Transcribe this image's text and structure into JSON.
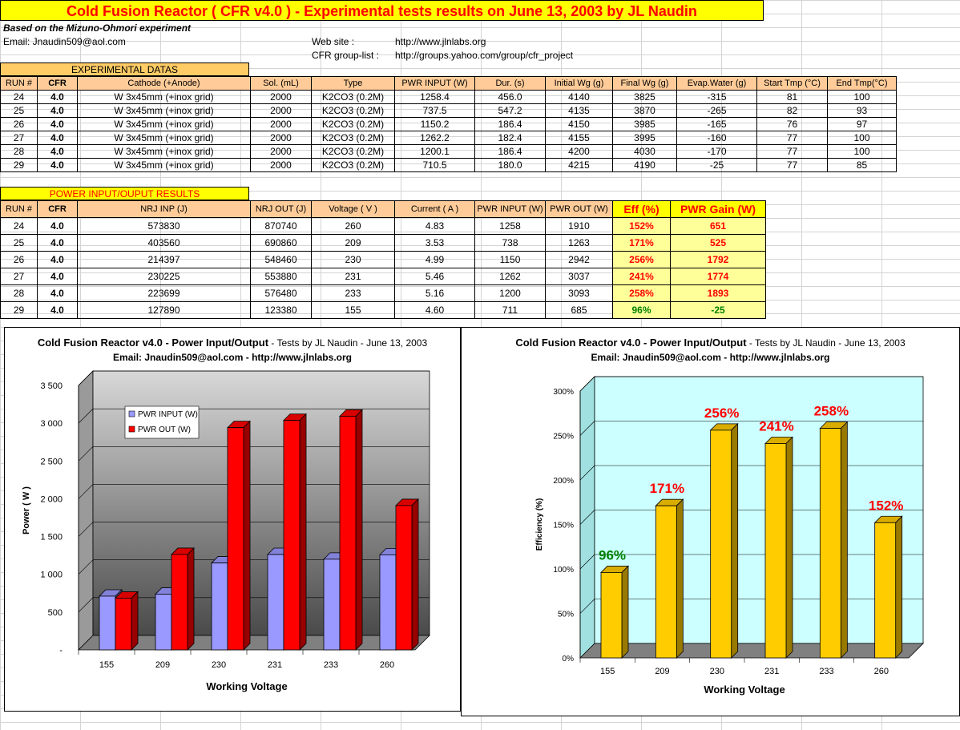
{
  "title": "Cold Fusion Reactor ( CFR v4.0 ) - Experimental tests results on June 13, 2003 by JL Naudin",
  "subtitle": "Based on the Mizuno-Ohmori experiment",
  "email_line": "Email: Jnaudin509@aol.com",
  "website_label": "Web site :",
  "website_value": "http://www.jlnlabs.org",
  "group_label": "CFR group-list :",
  "group_value": "http://groups.yahoo.com/group/cfr_project",
  "experimental": {
    "label": "EXPERIMENTAL DATAS",
    "headers": [
      "RUN #",
      "CFR",
      "Cathode (+Anode)",
      "Sol. (mL)",
      "Type",
      "PWR INPUT (W)",
      "Dur. (s)",
      "Initial Wg (g)",
      "Final Wg (g)",
      "Evap.Water (g)",
      "Start Tmp (°C)",
      "End Tmp(°C)"
    ],
    "rows": [
      [
        "24",
        "4.0",
        "W 3x45mm (+inox grid)",
        "2000",
        "K2CO3 (0.2M)",
        "1258.4",
        "456.0",
        "4140",
        "3825",
        "-315",
        "81",
        "100"
      ],
      [
        "25",
        "4.0",
        "W 3x45mm (+inox grid)",
        "2000",
        "K2CO3 (0.2M)",
        "737.5",
        "547.2",
        "4135",
        "3870",
        "-265",
        "82",
        "93"
      ],
      [
        "26",
        "4.0",
        "W 3x45mm (+inox grid)",
        "2000",
        "K2CO3 (0.2M)",
        "1150.2",
        "186.4",
        "4150",
        "3985",
        "-165",
        "76",
        "97"
      ],
      [
        "27",
        "4.0",
        "W 3x45mm (+inox grid)",
        "2000",
        "K2CO3 (0.2M)",
        "1262.2",
        "182.4",
        "4155",
        "3995",
        "-160",
        "77",
        "100"
      ],
      [
        "28",
        "4.0",
        "W 3x45mm (+inox grid)",
        "2000",
        "K2CO3 (0.2M)",
        "1200.1",
        "186.4",
        "4200",
        "4030",
        "-170",
        "77",
        "100"
      ],
      [
        "29",
        "4.0",
        "W 3x45mm (+inox grid)",
        "2000",
        "K2CO3 (0.2M)",
        "710.5",
        "180.0",
        "4215",
        "4190",
        "-25",
        "77",
        "85"
      ]
    ]
  },
  "results": {
    "label": "POWER INPUT/OUPUT RESULTS",
    "headers": [
      "RUN #",
      "CFR",
      "NRJ INP (J)",
      "NRJ OUT (J)",
      "Voltage ( V )",
      "Current ( A )",
      "PWR INPUT (W)",
      "PWR OUT (W)",
      "Eff (%)",
      "PWR Gain (W)"
    ],
    "rows": [
      [
        "24",
        "4.0",
        "573830",
        "870740",
        "260",
        "4.83",
        "1258",
        "1910",
        "152%",
        "651"
      ],
      [
        "25",
        "4.0",
        "403560",
        "690860",
        "209",
        "3.53",
        "738",
        "1263",
        "171%",
        "525"
      ],
      [
        "26",
        "4.0",
        "214397",
        "548460",
        "230",
        "4.99",
        "1150",
        "2942",
        "256%",
        "1792"
      ],
      [
        "27",
        "4.0",
        "230225",
        "553880",
        "231",
        "5.46",
        "1262",
        "3037",
        "241%",
        "1774"
      ],
      [
        "28",
        "4.0",
        "223699",
        "576480",
        "233",
        "5.16",
        "1200",
        "3093",
        "258%",
        "1893"
      ],
      [
        "29",
        "4.0",
        "127890",
        "123380",
        "155",
        "4.60",
        "711",
        "685",
        "96%",
        "-25"
      ]
    ],
    "colors": {
      "gain": "#ff0000",
      "loss": "#008000"
    }
  },
  "chart_data": [
    {
      "type": "bar",
      "title_main": "Cold Fusion Reactor v4.0 - Power Input/Output",
      "title_suffix": " - Tests by JL Naudin - June 13, 2003",
      "subtitle": "Email: Jnaudin509@aol.com - http://www.jlnlabs.org",
      "categories": [
        "155",
        "209",
        "230",
        "231",
        "233",
        "260"
      ],
      "series": [
        {
          "name": "PWR INPUT (W)",
          "values": [
            711,
            738,
            1150,
            1262,
            1200,
            1258
          ],
          "color": "#9999ff"
        },
        {
          "name": "PWR OUT (W)",
          "values": [
            685,
            1263,
            2942,
            3037,
            3093,
            1910
          ],
          "color": "#ff0000"
        }
      ],
      "xlabel": "Working Voltage",
      "ylabel": "Power ( W )",
      "ylim": [
        0,
        3500
      ],
      "yticks": [
        "-",
        "500",
        "1 000",
        "1 500",
        "2 000",
        "2 500",
        "3 000",
        "3 500"
      ],
      "legend": "top-left inside plot",
      "grid": true
    },
    {
      "type": "bar",
      "title_main": "Cold Fusion Reactor v4.0 - Power Input/Output",
      "title_suffix": " - Tests by JL Naudin - June 13, 2003",
      "subtitle": "Email: Jnaudin509@aol.com - http://www.jlnlabs.org",
      "categories": [
        "155",
        "209",
        "230",
        "231",
        "233",
        "260"
      ],
      "values": [
        96,
        171,
        256,
        241,
        258,
        152
      ],
      "labels": [
        "96%",
        "171%",
        "256%",
        "241%",
        "258%",
        "152%"
      ],
      "label_colors": [
        "#008000",
        "#ff0000",
        "#ff0000",
        "#ff0000",
        "#ff0000",
        "#ff0000"
      ],
      "bar_color": "#ffcc00",
      "plot_bg": "#ccffff",
      "xlabel": "Working Voltage",
      "ylabel": "Efficiency (%)",
      "ylim": [
        0,
        300
      ],
      "yticks": [
        "0%",
        "50%",
        "100%",
        "150%",
        "200%",
        "250%",
        "300%"
      ],
      "grid": true
    }
  ]
}
